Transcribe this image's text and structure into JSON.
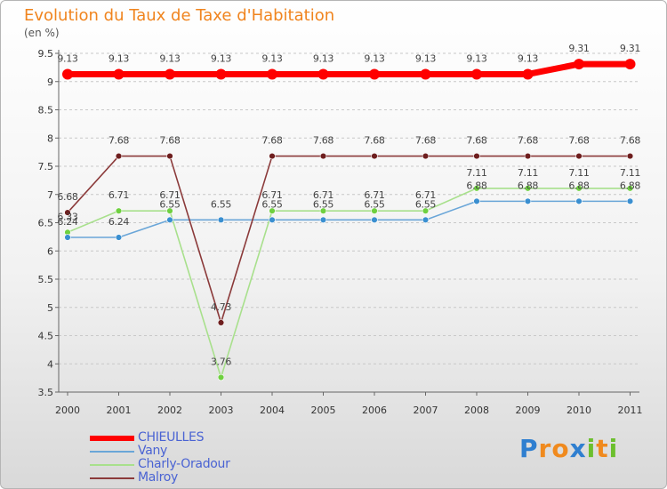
{
  "chart_data": {
    "type": "line",
    "title": "Evolution du Taux de Taxe d'Habitation",
    "subtitle": "(en %)",
    "xlabel": "",
    "ylabel": "",
    "ylim": [
      3.5,
      9.5
    ],
    "yticks": [
      "3.5",
      "4",
      "4.5",
      "5",
      "5.5",
      "6",
      "6.5",
      "7",
      "7.5",
      "8",
      "8.5",
      "9",
      "9.5"
    ],
    "categories": [
      "2000",
      "2001",
      "2002",
      "2003",
      "2004",
      "2005",
      "2006",
      "2007",
      "2008",
      "2009",
      "2010",
      "2011"
    ],
    "series": [
      {
        "name": "CHIEULLES",
        "color": "#ff0000",
        "values": [
          9.13,
          9.13,
          9.13,
          9.13,
          9.13,
          9.13,
          9.13,
          9.13,
          9.13,
          9.13,
          9.31,
          9.31
        ],
        "labels": [
          "9.13",
          "9.13",
          "9.13",
          "9.13",
          "9.13",
          "9.13",
          "9.13",
          "9.13",
          "9.13",
          "9.13",
          "9.31",
          "9.31"
        ]
      },
      {
        "name": "Vany",
        "color": "#6aa6d8",
        "marker_color": "#3a8fd0",
        "values": [
          6.24,
          6.24,
          6.55,
          6.55,
          6.55,
          6.55,
          6.55,
          6.55,
          6.88,
          6.88,
          6.88,
          6.88
        ],
        "labels": [
          "6.24",
          "6.24",
          "6.55",
          "6.55",
          "6.55",
          "6.55",
          "6.55",
          "6.55",
          "6.88",
          "6.88",
          "6.88",
          "6.88"
        ]
      },
      {
        "name": "Charly-Oradour",
        "color": "#a8e08c",
        "marker_color": "#6fd040",
        "values": [
          6.33,
          6.71,
          6.71,
          3.76,
          6.71,
          6.71,
          6.71,
          6.71,
          7.11,
          7.11,
          7.11,
          7.11
        ],
        "labels": [
          "6.33",
          "6.71",
          "6.71",
          "3.76",
          "6.71",
          "6.71",
          "6.71",
          "6.71",
          "7.11",
          "7.11",
          "7.11",
          "7.11"
        ]
      },
      {
        "name": "Malroy",
        "color": "#8b3a3a",
        "marker_color": "#6e1e1e",
        "values": [
          6.68,
          7.68,
          7.68,
          4.73,
          7.68,
          7.68,
          7.68,
          7.68,
          7.68,
          7.68,
          7.68,
          7.68
        ],
        "labels": [
          "6.68",
          "7.68",
          "7.68",
          "4.73",
          "7.68",
          "7.68",
          "7.68",
          "7.68",
          "7.68",
          "7.68",
          "7.68",
          "7.68"
        ]
      }
    ],
    "grid": "horizontal-dashed",
    "legend_position": "bottom-left"
  },
  "logo": {
    "letters": [
      "P",
      "r",
      "o",
      "x",
      "i",
      "t",
      "i"
    ],
    "colors": [
      "#2f7fd0",
      "#f08a1e",
      "#f08a1e",
      "#2f7fd0",
      "#6cbf2e",
      "#f08a1e",
      "#6cbf2e"
    ]
  }
}
